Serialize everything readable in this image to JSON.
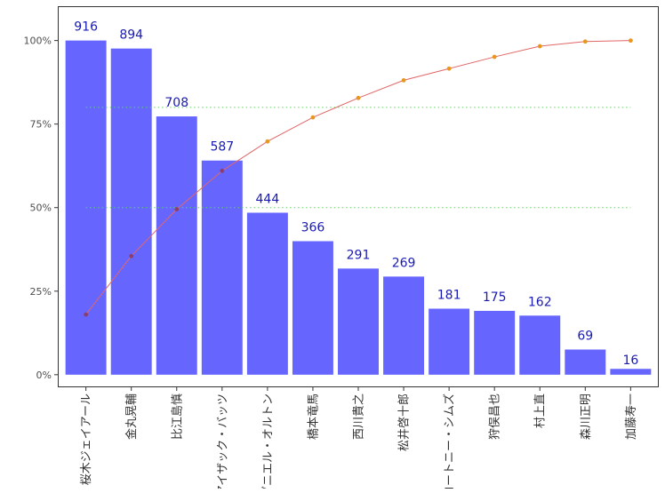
{
  "chart_data": {
    "type": "bar",
    "categories": [
      "桜木ジェイアール",
      "金丸晃輔",
      "比江島慎",
      "アイザック・バッツ",
      "ダニエル・オルトン",
      "橋本竜馬",
      "西川貴之",
      "松井啓十郎",
      "コートニー・シムズ",
      "狩俣昌也",
      "村上直",
      "森川正明",
      "加藤寿一"
    ],
    "values": [
      916,
      894,
      708,
      587,
      444,
      366,
      291,
      269,
      181,
      175,
      162,
      69,
      16
    ],
    "value_labels": [
      "916",
      "894",
      "708",
      "587",
      "444",
      "366",
      "291",
      "269",
      "181",
      "175",
      "162",
      "69",
      "16"
    ],
    "cumulative_percent": [
      18,
      35.5,
      49.5,
      61,
      69.8,
      77,
      82.8,
      88.1,
      91.6,
      95.1,
      98.3,
      99.7,
      100
    ],
    "y_ticks": [
      0,
      25,
      50,
      75,
      100
    ],
    "y_tick_labels": [
      "0%",
      "25%",
      "50%",
      "75%",
      "100%"
    ],
    "ylim": [
      -3.5,
      110
    ],
    "reference_lines": [
      50,
      80
    ],
    "title": "",
    "xlabel": "",
    "ylabel": "",
    "grid": false,
    "colors": {
      "bar": "#6666ff",
      "value_label": "#1a1ab2",
      "cumulative_line": "#e06666",
      "point_above_bar": "#e8961e",
      "point_on_bar": "#8b3f6e",
      "reference_line": "#5cd65c"
    }
  }
}
